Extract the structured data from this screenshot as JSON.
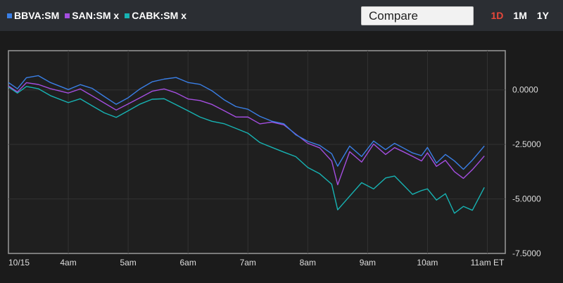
{
  "legend": [
    {
      "label": "BBVA:SM",
      "color": "#3a7fe6"
    },
    {
      "label": "SAN:SM x",
      "color": "#a44ee0"
    },
    {
      "label": "CABK:SM x",
      "color": "#17b3b3"
    }
  ],
  "compare": {
    "placeholder": "Compare"
  },
  "ranges": [
    {
      "label": "1D",
      "active": true,
      "color": "#e8473a"
    },
    {
      "label": "1M",
      "active": false,
      "color": "#ffffff"
    },
    {
      "label": "1Y",
      "active": false,
      "color": "#ffffff"
    }
  ],
  "chart_data": {
    "type": "line",
    "x_ticks": [
      "10/15",
      "4am",
      "5am",
      "6am",
      "7am",
      "8am",
      "9am",
      "10am",
      "11am ET"
    ],
    "y_ticks": [
      "0.0000",
      "-2.5000",
      "-5.0000",
      "-7.5000"
    ],
    "y_tick_values": [
      0,
      -2.5,
      -5,
      -7.5
    ],
    "ylim": [
      -7.5,
      1.8
    ],
    "grid": true,
    "series": [
      {
        "name": "BBVA:SM",
        "color": "#3a7fe6",
        "x": [
          0,
          0.15,
          0.3,
          0.5,
          0.7,
          1.0,
          1.2,
          1.4,
          1.6,
          1.8,
          2.0,
          2.2,
          2.4,
          2.6,
          2.8,
          3.0,
          3.2,
          3.4,
          3.6,
          3.8,
          4.0,
          4.2,
          4.4,
          4.6,
          4.8,
          5.0,
          5.2,
          5.4,
          5.5,
          5.7,
          5.9,
          6.1,
          6.3,
          6.45,
          6.6,
          6.75,
          6.9,
          7.0,
          7.15,
          7.3,
          7.45,
          7.6,
          7.75,
          7.85,
          7.95
        ],
        "y": [
          0.3,
          0.0,
          0.5,
          0.6,
          0.3,
          0.0,
          0.25,
          0.1,
          -0.25,
          -0.6,
          -0.3,
          0.1,
          0.4,
          0.5,
          0.55,
          0.3,
          0.2,
          -0.1,
          -0.5,
          -0.8,
          -0.9,
          -1.2,
          -1.4,
          -1.5,
          -2.0,
          -2.3,
          -2.5,
          -2.9,
          -3.5,
          -2.6,
          -3.1,
          -2.4,
          -2.8,
          -2.5,
          -2.7,
          -2.9,
          -3.0,
          -2.6,
          -3.3,
          -2.9,
          -3.2,
          -3.6,
          -3.2,
          -2.9,
          -2.6
        ]
      },
      {
        "name": "SAN:SM",
        "color": "#a44ee0",
        "x": [
          0,
          0.15,
          0.3,
          0.5,
          0.7,
          1.0,
          1.2,
          1.4,
          1.6,
          1.8,
          2.0,
          2.2,
          2.4,
          2.6,
          2.8,
          3.0,
          3.2,
          3.4,
          3.6,
          3.8,
          4.0,
          4.2,
          4.4,
          4.6,
          4.8,
          5.0,
          5.2,
          5.4,
          5.5,
          5.7,
          5.9,
          6.1,
          6.3,
          6.45,
          6.6,
          6.75,
          6.9,
          7.0,
          7.15,
          7.3,
          7.45,
          7.6,
          7.75,
          7.85,
          7.95
        ],
        "y": [
          0.2,
          -0.1,
          0.3,
          0.2,
          0.0,
          -0.2,
          0.0,
          -0.3,
          -0.6,
          -0.9,
          -0.6,
          -0.3,
          0.0,
          0.1,
          -0.1,
          -0.4,
          -0.5,
          -0.7,
          -1.0,
          -1.3,
          -1.3,
          -1.6,
          -1.5,
          -1.6,
          -2.0,
          -2.4,
          -2.6,
          -3.2,
          -4.3,
          -2.8,
          -3.3,
          -2.5,
          -3.0,
          -2.7,
          -2.9,
          -3.1,
          -3.3,
          -2.9,
          -3.5,
          -3.2,
          -3.7,
          -4.0,
          -3.6,
          -3.3,
          -3.0
        ]
      },
      {
        "name": "CABK:SM",
        "color": "#17b3b3",
        "x": [
          0,
          0.15,
          0.3,
          0.5,
          0.7,
          1.0,
          1.2,
          1.4,
          1.6,
          1.8,
          2.0,
          2.2,
          2.4,
          2.6,
          2.8,
          3.0,
          3.2,
          3.4,
          3.6,
          3.8,
          4.0,
          4.2,
          4.4,
          4.6,
          4.8,
          5.0,
          5.2,
          5.4,
          5.5,
          5.7,
          5.9,
          6.1,
          6.3,
          6.45,
          6.6,
          6.75,
          6.9,
          7.0,
          7.15,
          7.3,
          7.45,
          7.6,
          7.75,
          7.85,
          7.95
        ],
        "y": [
          0.1,
          -0.2,
          0.1,
          0.0,
          -0.3,
          -0.6,
          -0.4,
          -0.7,
          -1.0,
          -1.2,
          -0.9,
          -0.6,
          -0.4,
          -0.4,
          -0.7,
          -1.0,
          -1.3,
          -1.5,
          -1.6,
          -1.8,
          -2.0,
          -2.4,
          -2.6,
          -2.8,
          -3.0,
          -3.5,
          -3.8,
          -4.3,
          -5.5,
          -4.9,
          -4.3,
          -4.6,
          -4.1,
          -4.0,
          -4.4,
          -4.8,
          -4.6,
          -4.5,
          -5.0,
          -4.7,
          -5.6,
          -5.3,
          -5.5,
          -5.0,
          -4.5
        ]
      }
    ]
  }
}
